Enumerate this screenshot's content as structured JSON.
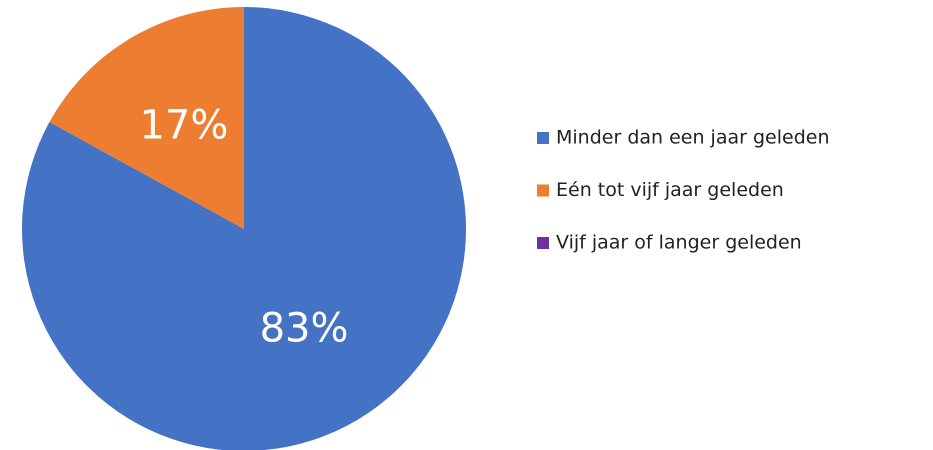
{
  "chart_data": {
    "type": "pie",
    "categories": [
      "Minder dan een jaar geleden",
      "Eén tot vijf jaar geleden",
      "Vijf jaar of langer geleden"
    ],
    "values": [
      83,
      17,
      0
    ],
    "value_labels": [
      "83%",
      "17%",
      null
    ],
    "colors": [
      "#4472c4",
      "#ed7d31",
      "#7030a0"
    ],
    "legend": "right"
  }
}
